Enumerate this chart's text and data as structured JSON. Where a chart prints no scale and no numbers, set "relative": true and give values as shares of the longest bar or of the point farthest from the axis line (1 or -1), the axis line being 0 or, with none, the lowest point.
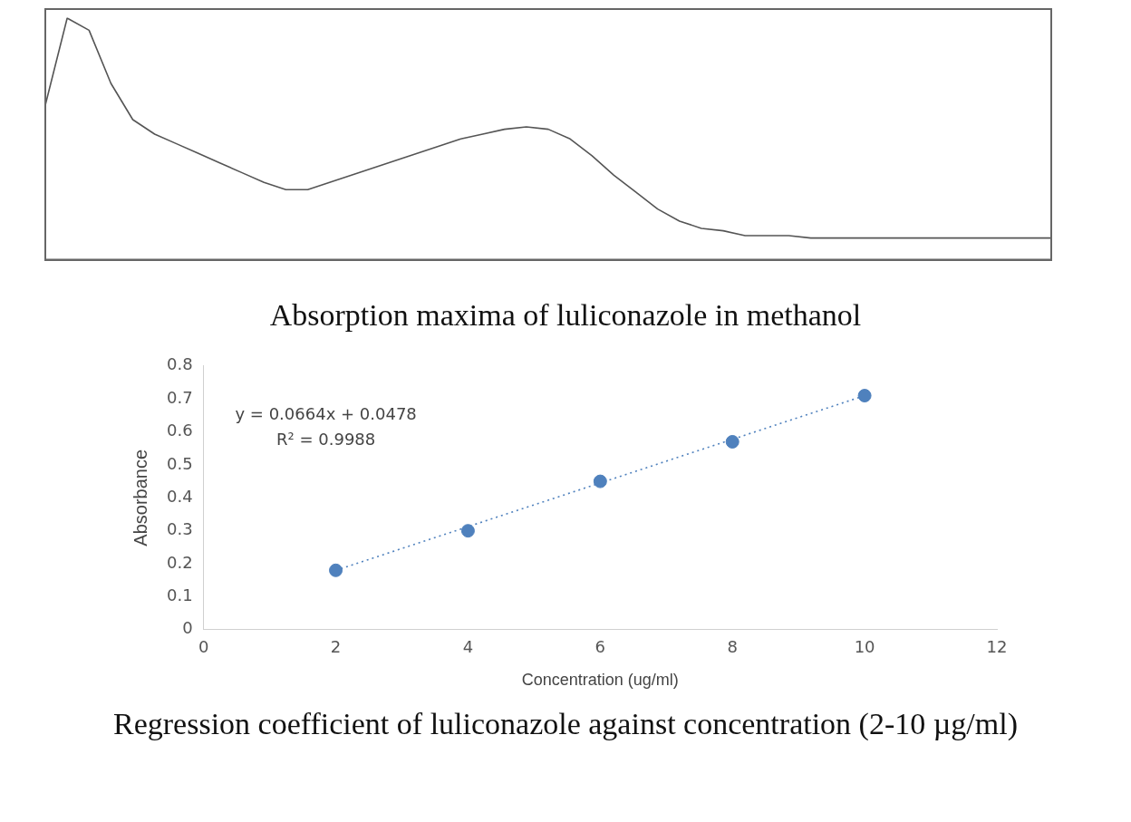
{
  "chart_data": [
    {
      "type": "line",
      "title": "Absorption maxima of luliconazole in methanol",
      "relative": true,
      "color": "#555555",
      "grid": false,
      "legend": false,
      "categories": [
        null,
        null,
        null,
        null,
        null,
        null,
        null,
        null,
        null,
        null,
        null,
        null,
        null,
        null,
        null,
        null,
        null,
        null,
        null,
        null,
        null,
        null,
        null,
        null,
        null,
        null,
        null,
        null,
        null,
        null,
        null,
        null,
        null,
        null,
        null,
        null,
        null,
        null,
        null,
        null,
        null,
        null,
        null,
        null,
        null,
        null,
        null
      ],
      "values": [
        0.64,
        1,
        0.95,
        0.73,
        0.58,
        0.52,
        0.48,
        0.44,
        0.4,
        0.36,
        0.32,
        0.29,
        0.29,
        0.32,
        0.35,
        0.38,
        0.41,
        0.44,
        0.47,
        0.5,
        0.52,
        0.54,
        0.55,
        0.54,
        0.5,
        0.43,
        0.35,
        0.28,
        0.21,
        0.16,
        0.13,
        0.12,
        0.1,
        0.1,
        0.1,
        0.09,
        0.09,
        0.09,
        0.09,
        0.09,
        0.09,
        0.09,
        0.09,
        0.09,
        0.09,
        0.09,
        0.09
      ]
    },
    {
      "type": "scatter",
      "title": "Regression coefficient of luliconazole against concentration  (2-10 µg/ml)",
      "xlabel": "Concentration (ug/ml)",
      "ylabel": "Absorbance",
      "grid": false,
      "legend": false,
      "marker": "circle",
      "xlim": [
        0,
        12
      ],
      "xticks": [
        0,
        2,
        4,
        6,
        8,
        10,
        12
      ],
      "ylim": [
        0,
        0.8
      ],
      "yticks": [
        0,
        0.1,
        0.2,
        0.3,
        0.4,
        0.5,
        0.6,
        0.7,
        0.8
      ],
      "annotations": [
        "y = 0.0664x + 0.0478",
        "R² = 0.9988"
      ],
      "series": [
        {
          "color": "#4f81bd",
          "x": [
            2,
            4,
            6,
            8,
            10
          ],
          "values": [
            0.18,
            0.3,
            0.45,
            0.57,
            0.71
          ]
        },
        {
          "type": "line",
          "color": "#4f81bd",
          "line_style": "dotted",
          "marker": "none",
          "x": [
            2,
            10
          ],
          "values": [
            0.18,
            0.71
          ]
        }
      ]
    }
  ]
}
